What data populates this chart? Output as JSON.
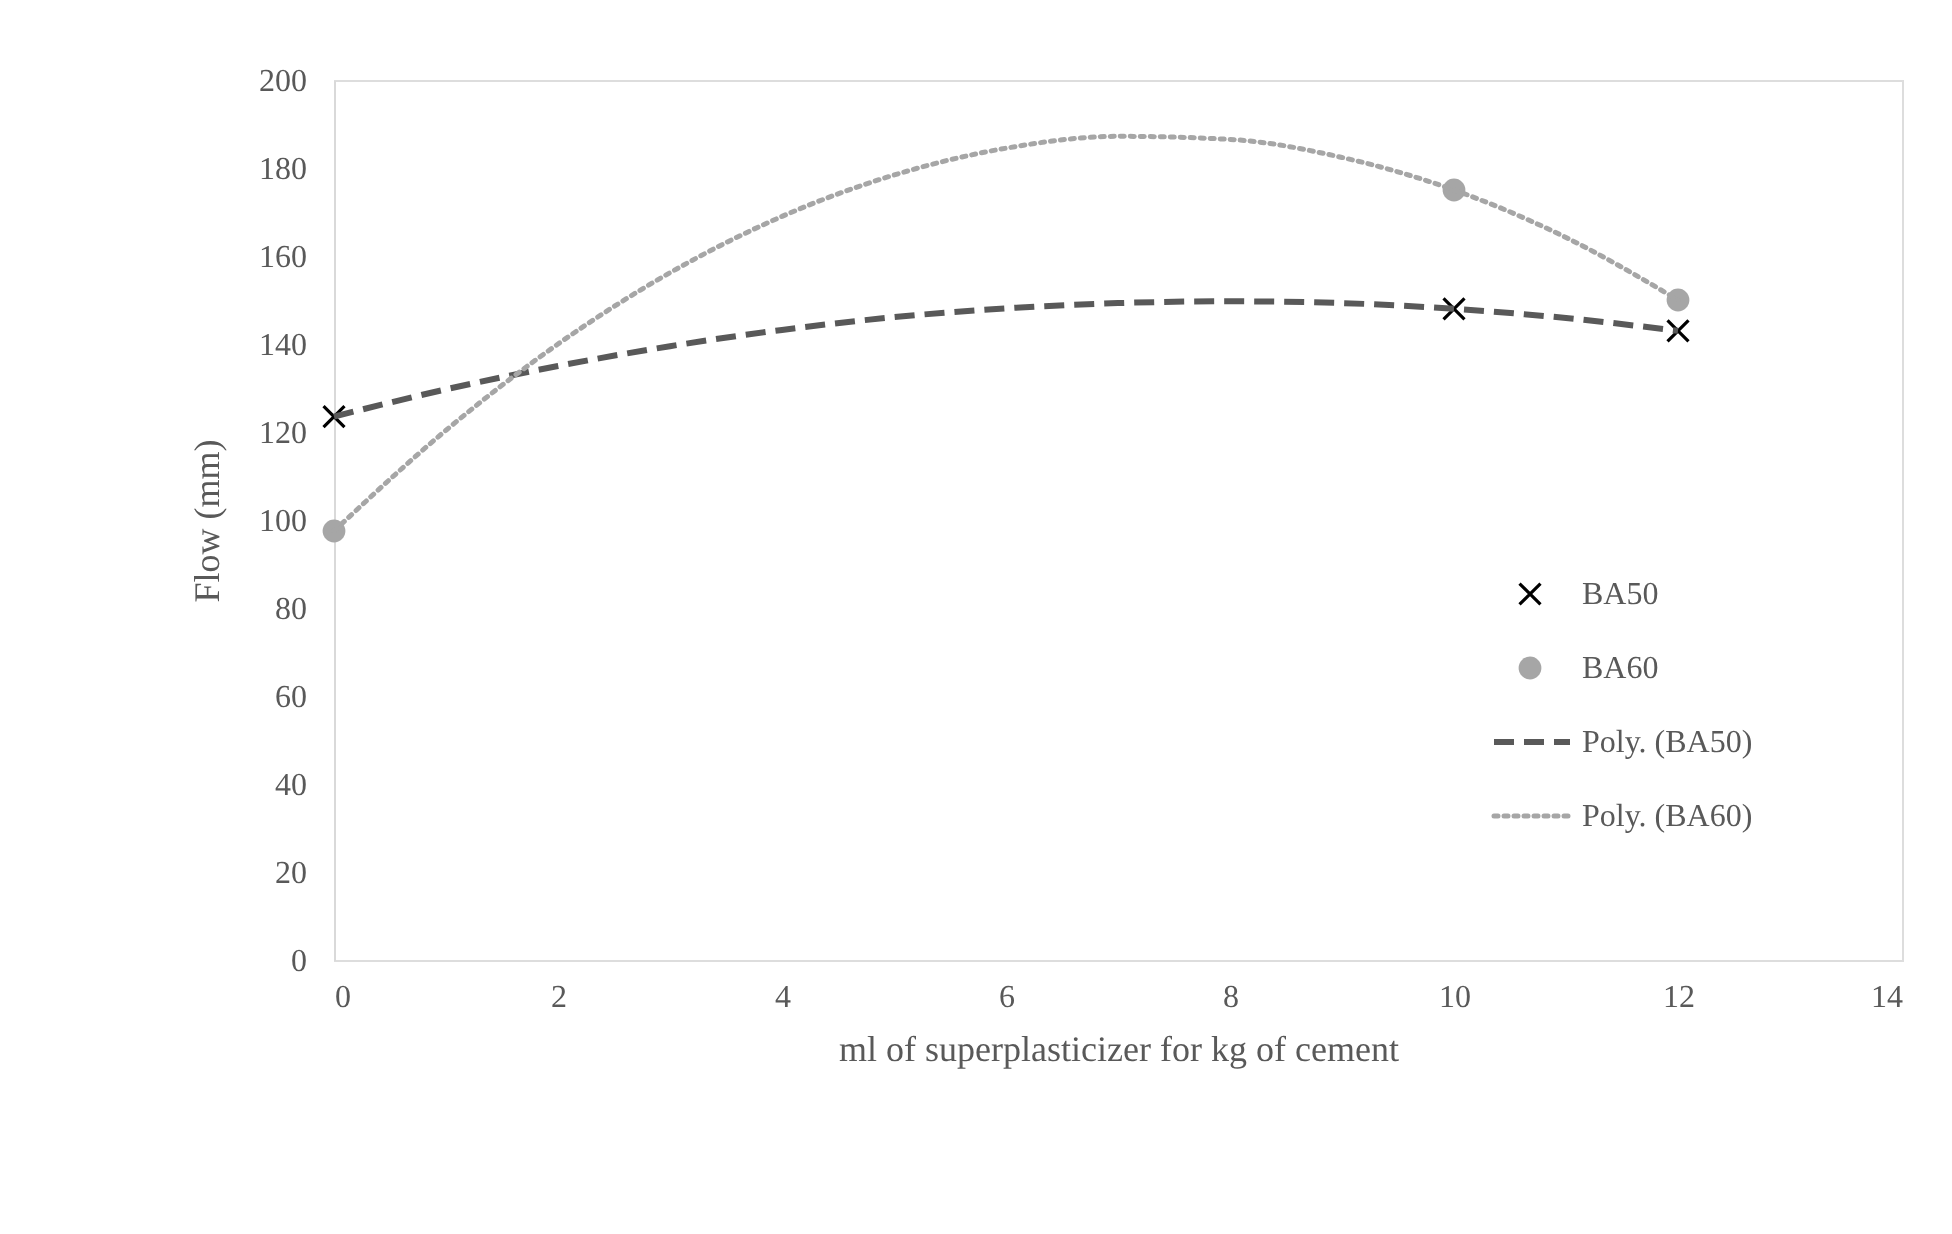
{
  "chart_data": {
    "type": "scatter",
    "xlabel": "ml of superplasticizer for kg of cement",
    "ylabel": "Flow (mm)",
    "xlim": [
      0,
      14
    ],
    "xticks": [
      0,
      2,
      4,
      6,
      8,
      10,
      12,
      14
    ],
    "ylim": [
      0,
      200
    ],
    "yticks": [
      0,
      20,
      40,
      60,
      80,
      100,
      120,
      140,
      160,
      180,
      200
    ],
    "grid": false,
    "legend": "right",
    "series": [
      {
        "name": "BA50",
        "marker": "cross",
        "color": "#000000",
        "x": [
          0,
          10,
          12
        ],
        "values": [
          123.5,
          148,
          143
        ]
      },
      {
        "name": "BA60",
        "marker": "circle",
        "color": "#a6a6a6",
        "x": [
          0,
          10,
          12
        ],
        "values": [
          97.5,
          175,
          150
        ]
      },
      {
        "name": "Poly. (BA50)",
        "type": "line",
        "line_style": "dashed",
        "color": "#595959",
        "x": [
          0,
          1,
          2,
          3,
          4,
          5,
          6,
          7,
          8,
          9,
          10,
          11,
          12
        ],
        "values": [
          123.5,
          129.7,
          135.0,
          139.5,
          143.2,
          146.1,
          148.1,
          149.3,
          149.7,
          149.3,
          148.0,
          145.9,
          143.0
        ]
      },
      {
        "name": "Poly. (BA60)",
        "type": "line",
        "line_style": "dotted",
        "color": "#a6a6a6",
        "x": [
          0,
          1,
          2,
          3,
          4,
          5,
          6,
          7,
          8,
          9,
          10,
          11,
          12
        ],
        "values": [
          97.5,
          120.4,
          140.0,
          156.2,
          169.0,
          178.4,
          184.5,
          187.2,
          186.5,
          182.4,
          175.0,
          164.2,
          150.0
        ]
      }
    ]
  }
}
